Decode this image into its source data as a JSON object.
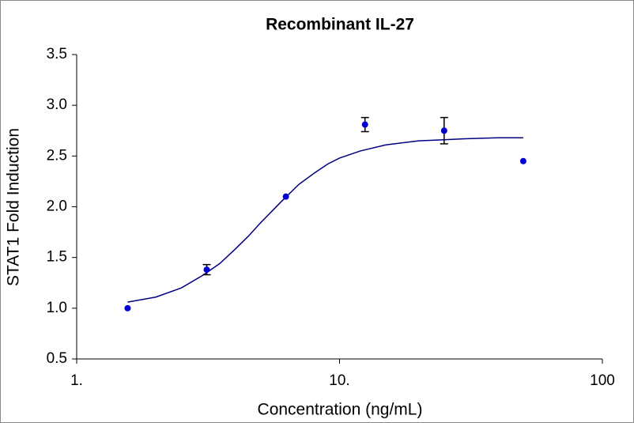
{
  "chart_data": {
    "type": "scatter",
    "title": "Recombinant IL-27",
    "xlabel": "Concentration (ng/mL)",
    "ylabel": "STAT1 Fold Induction",
    "xscale": "log",
    "xlim": [
      1,
      100
    ],
    "xticks": [
      {
        "value": 1,
        "label": "1."
      },
      {
        "value": 10,
        "label": "10."
      },
      100
    ],
    "ylim": [
      0.5,
      3.5
    ],
    "yticks": [
      0.5,
      {
        "value": 1,
        "label": "1.0"
      },
      1.5,
      {
        "value": 2,
        "label": "2.0"
      },
      2.5,
      {
        "value": 3,
        "label": "3.0"
      },
      3.5
    ],
    "points": {
      "color": "#0000cc",
      "x": [
        1.5625,
        3.125,
        6.25,
        12.5,
        25,
        50
      ],
      "values": [
        1.0,
        1.38,
        2.1,
        2.81,
        2.75,
        2.45
      ],
      "errors": [
        null,
        0.05,
        null,
        0.07,
        0.13,
        null
      ]
    },
    "fit": {
      "color": "#000080",
      "x": [
        1.5625,
        2,
        2.5,
        3,
        3.5,
        4,
        4.5,
        5,
        5.5,
        6,
        7,
        8,
        9,
        10,
        12,
        15,
        20,
        25,
        30,
        40,
        50
      ],
      "values": [
        1.06,
        1.11,
        1.2,
        1.32,
        1.44,
        1.58,
        1.71,
        1.84,
        1.95,
        2.05,
        2.22,
        2.33,
        2.42,
        2.48,
        2.55,
        2.61,
        2.65,
        2.66,
        2.67,
        2.68,
        2.68
      ]
    }
  }
}
